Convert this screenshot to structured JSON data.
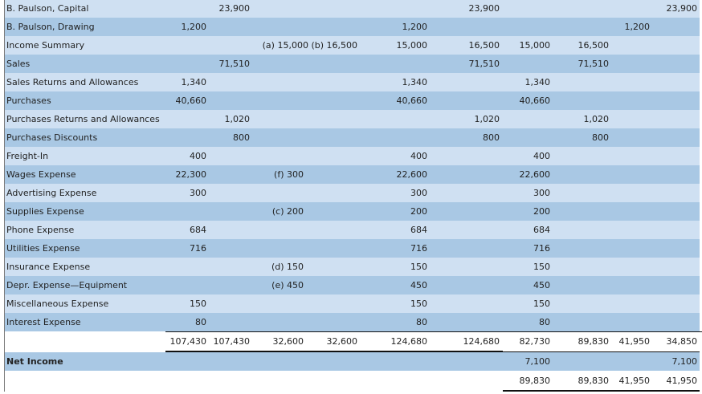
{
  "columns": {
    "tb_dr": {
      "x": 257,
      "w": 60
    },
    "tb_cr": {
      "x": 311,
      "w": 60
    },
    "adj_dr": {
      "x": 378,
      "w": 60
    },
    "adj_cr": {
      "x": 445,
      "w": 60
    },
    "atb_dr": {
      "x": 532,
      "w": 80
    },
    "atb_cr": {
      "x": 622,
      "w": 80
    },
    "is_dr": {
      "x": 685,
      "w": 60
    },
    "is_cr": {
      "x": 758,
      "w": 60
    },
    "bs_dr": {
      "x": 809,
      "w": 60
    },
    "bs_cr": {
      "x": 868,
      "w": 60
    }
  },
  "rows": [
    {
      "label": "B. Paulson, Capital",
      "style": "light",
      "values": {
        "tb_cr": "23,900",
        "atb_cr": "23,900",
        "bs_cr": "23,900"
      }
    },
    {
      "label": "B. Paulson, Drawing",
      "style": "dark",
      "values": {
        "tb_dr": "1,200",
        "atb_dr": "1,200",
        "bs_dr": "1,200"
      }
    },
    {
      "label": "Income Summary",
      "style": "light",
      "values": {
        "adj_both": "(a) 15,000 (b) 16,500",
        "atb_dr": "15,000",
        "atb_cr": "16,500",
        "is_dr": "15,000",
        "is_cr": "16,500"
      }
    },
    {
      "label": "Sales",
      "style": "dark",
      "values": {
        "tb_cr": "71,510",
        "atb_cr": "71,510",
        "is_cr": "71,510"
      }
    },
    {
      "label": "Sales Returns and Allowances",
      "style": "light",
      "values": {
        "tb_dr": "1,340",
        "atb_dr": "1,340",
        "is_dr": "1,340"
      }
    },
    {
      "label": "Purchases",
      "style": "dark",
      "values": {
        "tb_dr": "40,660",
        "atb_dr": "40,660",
        "is_dr": "40,660"
      }
    },
    {
      "label": "Purchases Returns and Allowances",
      "style": "light",
      "values": {
        "tb_cr": "1,020",
        "atb_cr": "1,020",
        "is_cr": "1,020"
      }
    },
    {
      "label": "Purchases Discounts",
      "style": "dark",
      "values": {
        "tb_cr": "800",
        "atb_cr": "800",
        "is_cr": "800"
      }
    },
    {
      "label": "Freight-In",
      "style": "light",
      "values": {
        "tb_dr": "400",
        "atb_dr": "400",
        "is_dr": "400"
      }
    },
    {
      "label": "Wages Expense",
      "style": "dark",
      "values": {
        "tb_dr": "22,300",
        "adj_dr": "(f) 300",
        "atb_dr": "22,600",
        "is_dr": "22,600"
      }
    },
    {
      "label": "Advertising Expense",
      "style": "light",
      "values": {
        "tb_dr": "300",
        "atb_dr": "300",
        "is_dr": "300"
      }
    },
    {
      "label": "Supplies Expense",
      "style": "dark",
      "values": {
        "adj_dr": "(c) 200",
        "atb_dr": "200",
        "is_dr": "200"
      }
    },
    {
      "label": "Phone Expense",
      "style": "light",
      "values": {
        "tb_dr": "684",
        "atb_dr": "684",
        "is_dr": "684"
      }
    },
    {
      "label": "Utilities Expense",
      "style": "dark",
      "values": {
        "tb_dr": "716",
        "atb_dr": "716",
        "is_dr": "716"
      }
    },
    {
      "label": "Insurance Expense",
      "style": "light",
      "values": {
        "adj_dr": "(d) 150",
        "atb_dr": "150",
        "is_dr": "150"
      }
    },
    {
      "label": "Depr. Expense—Equipment",
      "style": "dark",
      "values": {
        "adj_dr": "(e) 450",
        "atb_dr": "450",
        "is_dr": "450"
      }
    },
    {
      "label": "Miscellaneous Expense",
      "style": "light",
      "values": {
        "tb_dr": "150",
        "atb_dr": "150",
        "is_dr": "150"
      }
    },
    {
      "label": "Interest Expense",
      "style": "dark",
      "values": {
        "tb_dr": "80",
        "atb_dr": "80",
        "is_dr": "80"
      }
    },
    {
      "label": "",
      "style": "white",
      "values": {
        "tb_dr": "107,430",
        "tb_cr": "107,430",
        "adj_dr": "32,600",
        "adj_cr": "32,600",
        "atb_dr": "124,680",
        "atb_cr": "124,680",
        "is_dr": "82,730",
        "is_cr": "89,830",
        "bs_dr": "41,950",
        "bs_cr": "34,850"
      }
    },
    {
      "label": "Net Income",
      "style": "dark",
      "bold": true,
      "values": {
        "is_dr": "7,100",
        "bs_cr": "7,100"
      }
    },
    {
      "label": "",
      "style": "white",
      "values": {
        "is_dr": "89,830",
        "is_cr": "89,830",
        "bs_dr": "41,950",
        "bs_cr": "41,950"
      }
    }
  ]
}
